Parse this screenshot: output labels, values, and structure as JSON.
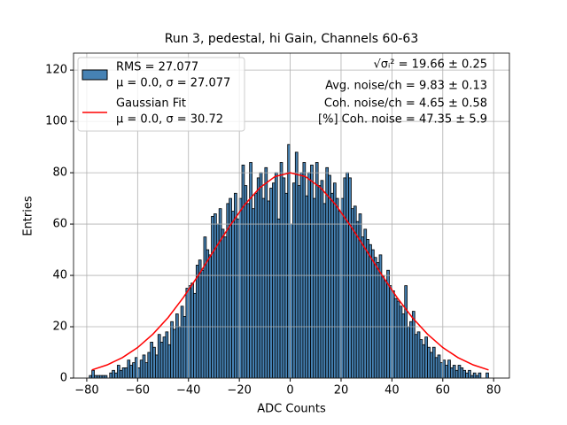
{
  "chart_data": {
    "type": "histogram",
    "title": "Run 3, pedestal, hi Gain, Channels 60-63",
    "xlabel": "ADC Counts",
    "ylabel": "Entries",
    "bins": [
      -80,
      -79,
      -78,
      -77,
      -76,
      -75,
      -74,
      -73,
      -72,
      -71,
      -70,
      -69,
      -68,
      -67,
      -66,
      -65,
      -64,
      -63,
      -62,
      -61,
      -60,
      -59,
      -58,
      -57,
      -56,
      -55,
      -54,
      -53,
      -52,
      -51,
      -50,
      -49,
      -48,
      -47,
      -46,
      -45,
      -44,
      -43,
      -42,
      -41,
      -40,
      -39,
      -38,
      -37,
      -36,
      -35,
      -34,
      -33,
      -32,
      -31,
      -30,
      -29,
      -28,
      -27,
      -26,
      -25,
      -24,
      -23,
      -22,
      -21,
      -20,
      -19,
      -18,
      -17,
      -16,
      -15,
      -14,
      -13,
      -12,
      -11,
      -10,
      -9,
      -8,
      -7,
      -6,
      -5,
      -4,
      -3,
      -2,
      -1,
      0,
      1,
      2,
      3,
      4,
      5,
      6,
      7,
      8,
      9,
      10,
      11,
      12,
      13,
      14,
      15,
      16,
      17,
      18,
      19,
      20,
      21,
      22,
      23,
      24,
      25,
      26,
      27,
      28,
      29,
      30,
      31,
      32,
      33,
      34,
      35,
      36,
      37,
      38,
      39,
      40,
      41,
      42,
      43,
      44,
      45,
      46,
      47,
      48,
      49,
      50,
      51,
      52,
      53,
      54,
      55,
      56,
      57,
      58,
      59,
      60,
      61,
      62,
      63,
      64,
      65,
      66,
      67,
      68,
      69,
      70,
      71,
      72,
      73,
      74,
      75,
      76,
      77,
      78
    ],
    "counts": [
      0,
      1,
      3,
      1,
      1,
      1,
      1,
      1,
      0,
      2,
      3,
      2,
      5,
      3,
      4,
      4,
      7,
      5,
      6,
      8,
      4,
      7,
      9,
      6,
      10,
      14,
      12,
      9,
      17,
      14,
      16,
      18,
      13,
      22,
      19,
      25,
      20,
      28,
      24,
      35,
      36,
      37,
      33,
      44,
      46,
      42,
      55,
      50,
      48,
      63,
      64,
      60,
      66,
      58,
      55,
      68,
      70,
      65,
      72,
      62,
      70,
      83,
      75,
      68,
      84,
      66,
      72,
      78,
      80,
      70,
      82,
      69,
      74,
      76,
      80,
      62,
      84,
      78,
      72,
      91,
      60,
      76,
      88,
      75,
      80,
      84,
      71,
      80,
      83,
      70,
      84,
      75,
      77,
      68,
      82,
      79,
      72,
      76,
      70,
      65,
      70,
      78,
      80,
      78,
      66,
      67,
      61,
      64,
      55,
      58,
      54,
      52,
      50,
      47,
      45,
      48,
      40,
      38,
      42,
      36,
      34,
      31,
      30,
      28,
      25,
      36,
      20,
      22,
      26,
      17,
      18,
      15,
      13,
      16,
      12,
      10,
      12,
      8,
      9,
      6,
      7,
      5,
      7,
      4,
      5,
      3,
      5,
      4,
      3,
      2,
      3,
      1,
      2,
      1,
      2,
      0,
      0,
      2
    ],
    "color": "#4682b4",
    "edgecolor": "#000000",
    "name": "RMS = 27.077",
    "description": "μ = 0.0, σ = 27.077",
    "fit": {
      "name": "Gaussian Fit",
      "description": "μ = 0.0, σ = 30.72",
      "color": "#ff0000",
      "x": [
        -78,
        -72,
        -66,
        -60,
        -54,
        -48,
        -42,
        -36,
        -30,
        -24,
        -18,
        -12,
        -6,
        0,
        6,
        12,
        18,
        24,
        30,
        36,
        42,
        48,
        54,
        60,
        66,
        72,
        78
      ],
      "values": [
        3.18,
        5.13,
        7.96,
        11.9,
        17.1,
        23.6,
        31.4,
        40.2,
        49.7,
        58.9,
        67.4,
        74.1,
        78.5,
        80,
        78.5,
        74.1,
        67.4,
        58.9,
        49.7,
        40.2,
        31.4,
        23.6,
        17.1,
        11.9,
        7.96,
        5.13,
        3.18
      ]
    },
    "annotations": [
      "√σᵢ² = 19.66 ± 0.25",
      "Avg. noise/ch = 9.83 ± 0.13",
      "Coh. noise/ch = 4.65 ± 0.58",
      "[%] Coh. noise = 47.35 ± 5.9"
    ],
    "xlim": [
      -85.2,
      86.2
    ],
    "ylim": [
      0,
      126.6
    ],
    "xticks": [
      {
        "value": -80,
        "label": "−80"
      },
      {
        "value": -60,
        "label": "−60"
      },
      {
        "value": -40,
        "label": "−40"
      },
      {
        "value": -20,
        "label": "−20"
      },
      0,
      20,
      40,
      60,
      80
    ],
    "yticks": [
      0,
      20,
      40,
      60,
      80,
      100,
      120
    ],
    "grid": true,
    "legend": "upper left"
  }
}
